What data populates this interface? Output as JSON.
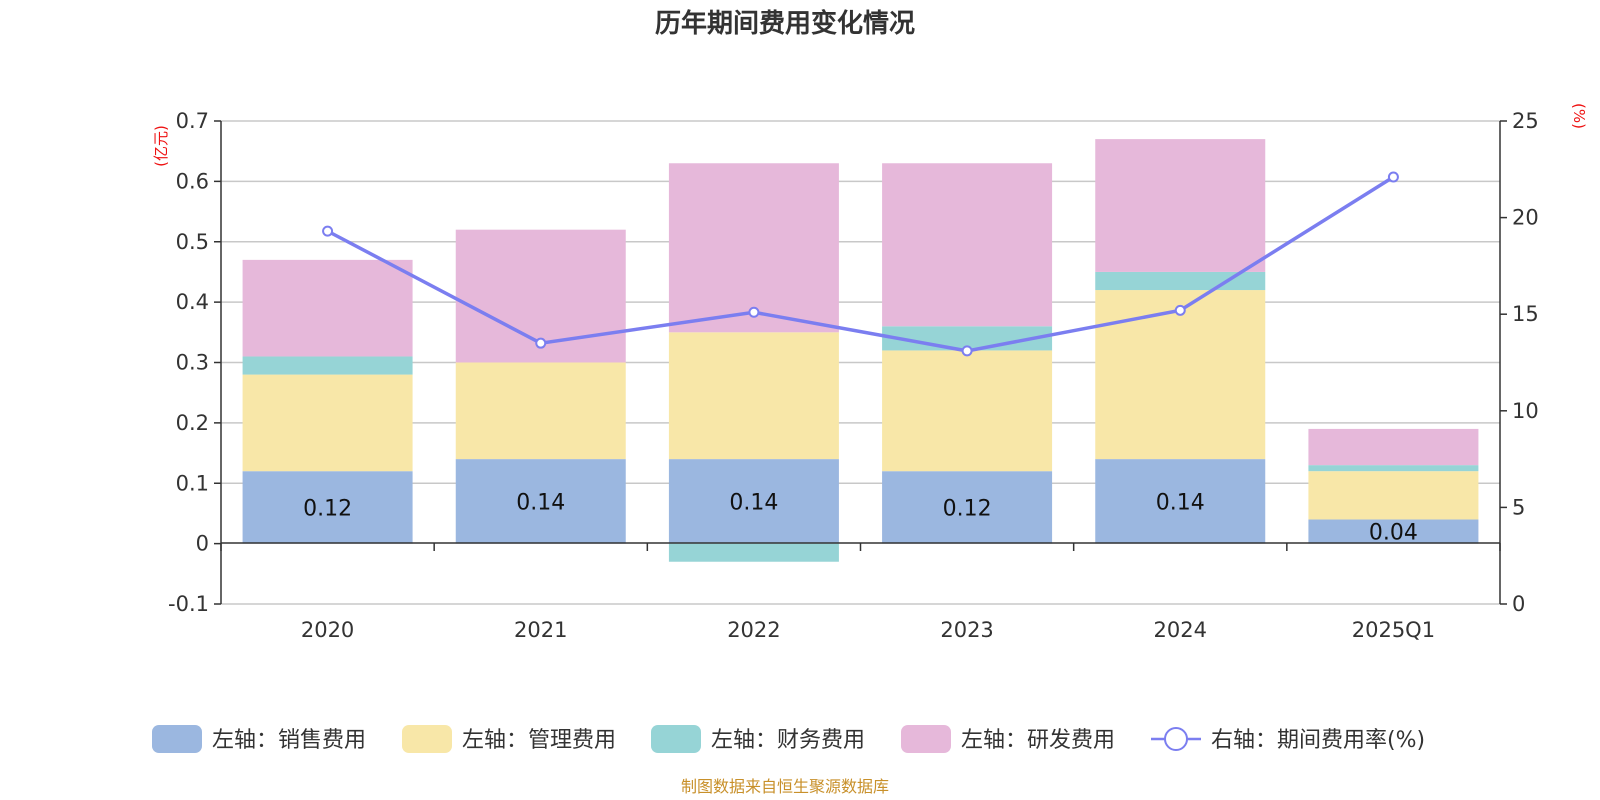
{
  "chart_data": {
    "type": "bar",
    "stacked": true,
    "title": "历年期间费用变化情况",
    "categories": [
      "2020",
      "2021",
      "2022",
      "2023",
      "2024",
      "2025Q1"
    ],
    "left_axis": {
      "unit_label": "(亿元)",
      "range": [
        -0.1,
        0.7
      ],
      "ticks": [
        -0.1,
        0,
        0.1,
        0.2,
        0.3,
        0.4,
        0.5,
        0.6,
        0.7
      ],
      "tick_labels": [
        "-0.1",
        "0",
        "0.1",
        "0.2",
        "0.3",
        "0.4",
        "0.5",
        "0.6",
        "0.7"
      ]
    },
    "right_axis": {
      "unit_label": "(%)",
      "range": [
        0,
        25
      ],
      "ticks": [
        0,
        5,
        10,
        15,
        20,
        25
      ],
      "tick_labels": [
        "0",
        "5",
        "10",
        "15",
        "20",
        "25"
      ]
    },
    "series": [
      {
        "name": "左轴：销售费用",
        "axis": "left",
        "color": "#9bb7e0",
        "values": [
          0.12,
          0.14,
          0.14,
          0.12,
          0.14,
          0.04
        ],
        "labels": [
          "0.12",
          "0.14",
          "0.14",
          "0.12",
          "0.14",
          "0.04"
        ]
      },
      {
        "name": "左轴：管理费用",
        "axis": "left",
        "color": "#f8e7a8",
        "values": [
          0.16,
          0.16,
          0.21,
          0.2,
          0.28,
          0.08
        ]
      },
      {
        "name": "左轴：财务费用",
        "axis": "left",
        "color": "#96d4d6",
        "values": [
          0.03,
          0.0,
          -0.03,
          0.04,
          0.03,
          0.01
        ]
      },
      {
        "name": "左轴：研发费用",
        "axis": "left",
        "color": "#e6b8da",
        "values": [
          0.16,
          0.22,
          0.28,
          0.27,
          0.22,
          0.06
        ]
      },
      {
        "name": "右轴：期间费用率(%)",
        "axis": "right",
        "type": "line",
        "color": "#7b7ef0",
        "values": [
          19.3,
          13.5,
          15.1,
          13.1,
          15.2,
          22.1
        ]
      }
    ],
    "grid": true,
    "legend_position": "bottom"
  },
  "source_note": "制图数据来自恒生聚源数据库"
}
